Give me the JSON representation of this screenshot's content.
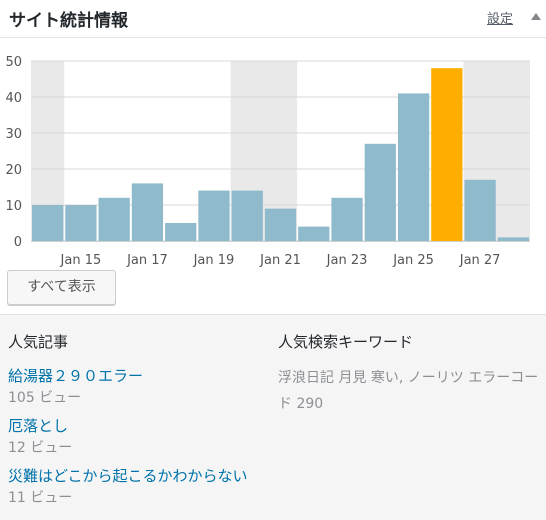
{
  "header": {
    "title": "サイト統計情報",
    "settings_label": "設定"
  },
  "chart_data": {
    "type": "bar",
    "categories": [
      "Jan 14",
      "Jan 15",
      "Jan 16",
      "Jan 17",
      "Jan 18",
      "Jan 19",
      "Jan 20",
      "Jan 21",
      "Jan 22",
      "Jan 23",
      "Jan 24",
      "Jan 25",
      "Jan 26",
      "Jan 27",
      "Jan 28"
    ],
    "values": [
      10,
      10,
      12,
      16,
      5,
      14,
      14,
      9,
      4,
      12,
      27,
      41,
      48,
      17,
      1
    ],
    "highlight_index": 12,
    "ylim": [
      0,
      50
    ],
    "yticks": [
      0,
      10,
      20,
      30,
      40,
      50
    ],
    "xtick_labels": [
      "Jan 15",
      "Jan 17",
      "Jan 19",
      "Jan 21",
      "Jan 23",
      "Jan 25",
      "Jan 27"
    ],
    "bar_color": "#8fbacc",
    "highlight_color": "#ffae00",
    "weekend_band_color": "#e9e9e9",
    "grid": true
  },
  "view_all_label": "すべて表示",
  "popular_posts": {
    "heading": "人気記事",
    "items": [
      {
        "title": "給湯器２９０エラー",
        "views": "105 ビュー"
      },
      {
        "title": "厄落とし",
        "views": "12 ビュー"
      },
      {
        "title": "災難はどこから起こるかわからない",
        "views": "11 ビュー"
      }
    ]
  },
  "popular_keywords": {
    "heading": "人気検索キーワード",
    "text": "浮浪日記 月見 寒い, ノーリツ エラーコード 290"
  }
}
